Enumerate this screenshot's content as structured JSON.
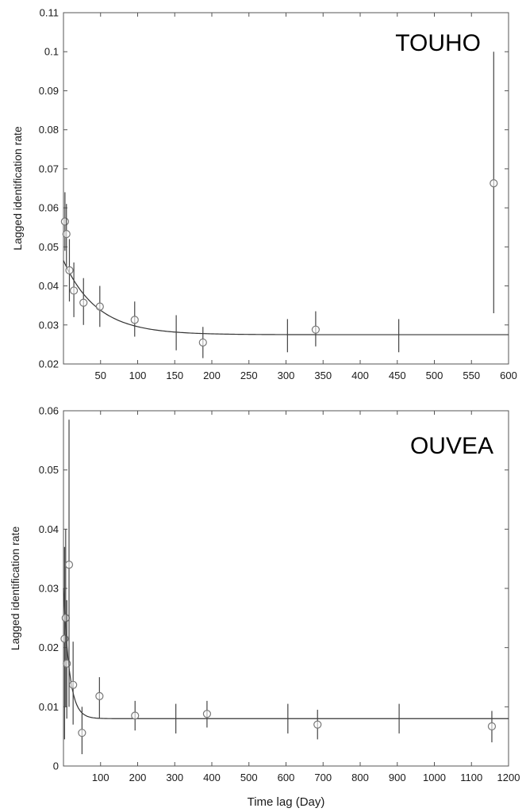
{
  "chart_data": [
    {
      "type": "scatter",
      "title": "TOUHO",
      "xlabel": "",
      "ylabel": "Lagged identification rate",
      "xlim": [
        0,
        600
      ],
      "ylim": [
        0.02,
        0.11
      ],
      "xticks": [
        50,
        100,
        150,
        200,
        250,
        300,
        350,
        400,
        450,
        500,
        550,
        600
      ],
      "xtick_labels": [
        "50",
        "100",
        "150",
        "200",
        "250",
        "300",
        "350",
        "400",
        "450",
        "500",
        "550",
        "600"
      ],
      "yticks": [
        0.02,
        0.03,
        0.04,
        0.05,
        0.06,
        0.07,
        0.08,
        0.09,
        0.1,
        0.11
      ],
      "ytick_labels": [
        "0.02",
        "0.03",
        "0.04",
        "0.05",
        "0.06",
        "0.07",
        "0.08",
        "0.09",
        "0.1",
        "0.11"
      ],
      "grid": false,
      "points": [
        {
          "x": 2,
          "y": 0.0565,
          "ylow": 0.049,
          "yhigh": 0.064,
          "marker": true
        },
        {
          "x": 4,
          "y": 0.0533,
          "ylow": 0.045,
          "yhigh": 0.061,
          "marker": true
        },
        {
          "x": 8,
          "y": 0.044,
          "ylow": 0.036,
          "yhigh": 0.052,
          "marker": true
        },
        {
          "x": 14,
          "y": 0.0388,
          "ylow": 0.032,
          "yhigh": 0.046,
          "marker": true
        },
        {
          "x": 27,
          "y": 0.0357,
          "ylow": 0.03,
          "yhigh": 0.042,
          "marker": true
        },
        {
          "x": 49,
          "y": 0.0347,
          "ylow": 0.0295,
          "yhigh": 0.04,
          "marker": true
        },
        {
          "x": 96,
          "y": 0.0313,
          "ylow": 0.027,
          "yhigh": 0.036,
          "marker": true
        },
        {
          "x": 152,
          "y": 0.0275,
          "ylow": 0.0235,
          "yhigh": 0.0325,
          "marker": false
        },
        {
          "x": 188,
          "y": 0.0255,
          "ylow": 0.0215,
          "yhigh": 0.0295,
          "marker": true
        },
        {
          "x": 302,
          "y": 0.0275,
          "ylow": 0.023,
          "yhigh": 0.0315,
          "marker": false
        },
        {
          "x": 340,
          "y": 0.0288,
          "ylow": 0.0245,
          "yhigh": 0.0335,
          "marker": true
        },
        {
          "x": 452,
          "y": 0.0275,
          "ylow": 0.023,
          "yhigh": 0.0315,
          "marker": false
        },
        {
          "x": 580,
          "y": 0.0663,
          "ylow": 0.033,
          "yhigh": 0.1,
          "marker": true
        }
      ],
      "fit": {
        "model": "exponential",
        "asymptote": 0.0275,
        "amplitude": 0.019,
        "decay_days": 45
      }
    },
    {
      "type": "scatter",
      "title": "OUVEA",
      "xlabel": "Time lag (Day)",
      "ylabel": "Lagged identification rate",
      "xlim": [
        0,
        1200
      ],
      "ylim": [
        0,
        0.06
      ],
      "xticks": [
        100,
        200,
        300,
        400,
        500,
        600,
        700,
        800,
        900,
        1000,
        1100,
        1200
      ],
      "xtick_labels": [
        "100",
        "200",
        "300",
        "400",
        "500",
        "600",
        "700",
        "800",
        "900",
        "1000",
        "1100",
        "1200"
      ],
      "yticks": [
        0,
        0.01,
        0.02,
        0.03,
        0.04,
        0.05,
        0.06
      ],
      "ytick_labels": [
        "0",
        "0.01",
        "0.02",
        "0.03",
        "0.04",
        "0.05",
        "0.06"
      ],
      "grid": false,
      "points": [
        {
          "x": 3,
          "y": 0.0215,
          "ylow": 0.0045,
          "yhigh": 0.037,
          "marker": true
        },
        {
          "x": 6,
          "y": 0.025,
          "ylow": 0.01,
          "yhigh": 0.04,
          "marker": true
        },
        {
          "x": 9,
          "y": 0.0173,
          "ylow": 0.008,
          "yhigh": 0.028,
          "marker": true
        },
        {
          "x": 15,
          "y": 0.034,
          "ylow": 0.01,
          "yhigh": 0.0585,
          "marker": true
        },
        {
          "x": 26,
          "y": 0.0137,
          "ylow": 0.007,
          "yhigh": 0.021,
          "marker": true
        },
        {
          "x": 50,
          "y": 0.0056,
          "ylow": 0.002,
          "yhigh": 0.01,
          "marker": true
        },
        {
          "x": 97,
          "y": 0.0118,
          "ylow": 0.008,
          "yhigh": 0.015,
          "marker": true
        },
        {
          "x": 193,
          "y": 0.0085,
          "ylow": 0.006,
          "yhigh": 0.011,
          "marker": true
        },
        {
          "x": 303,
          "y": 0.008,
          "ylow": 0.0055,
          "yhigh": 0.0105,
          "marker": false
        },
        {
          "x": 387,
          "y": 0.0088,
          "ylow": 0.0065,
          "yhigh": 0.011,
          "marker": true
        },
        {
          "x": 605,
          "y": 0.008,
          "ylow": 0.0055,
          "yhigh": 0.0105,
          "marker": false
        },
        {
          "x": 685,
          "y": 0.007,
          "ylow": 0.0045,
          "yhigh": 0.0095,
          "marker": true
        },
        {
          "x": 905,
          "y": 0.008,
          "ylow": 0.0055,
          "yhigh": 0.0105,
          "marker": false
        },
        {
          "x": 1155,
          "y": 0.0067,
          "ylow": 0.004,
          "yhigh": 0.0093,
          "marker": true
        }
      ],
      "fit": {
        "model": "exponential",
        "asymptote": 0.008,
        "amplitude": 0.022,
        "decay_days": 16
      }
    }
  ]
}
